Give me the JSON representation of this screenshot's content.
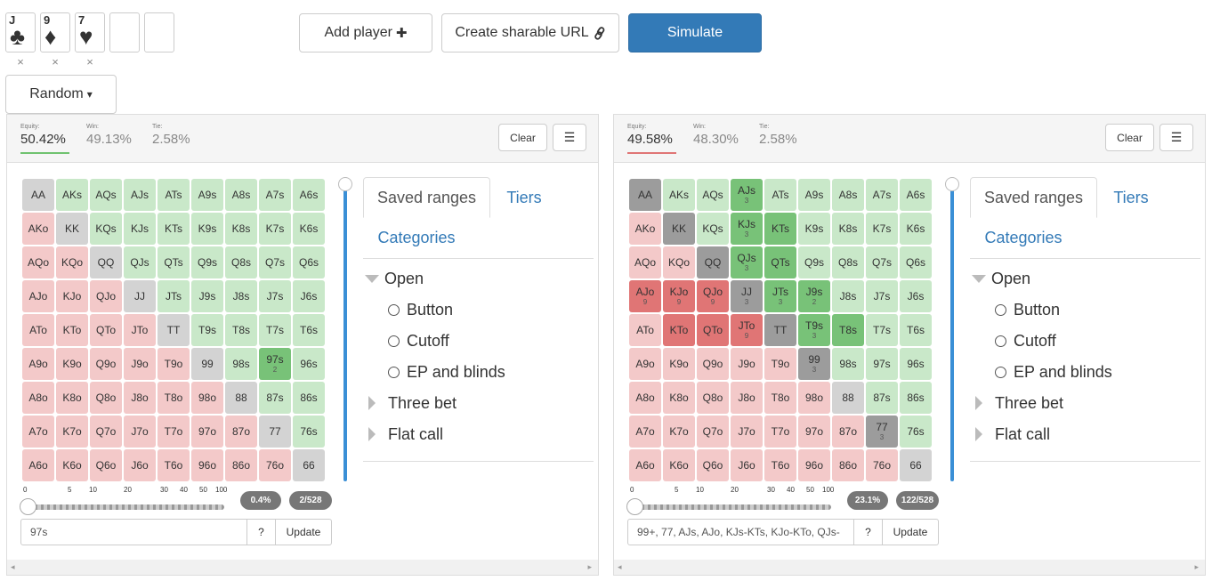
{
  "board": {
    "cards": [
      {
        "rank": "J",
        "suit": "♣",
        "color": "#111111"
      },
      {
        "rank": "9",
        "suit": "♦",
        "color": "#e02020"
      },
      {
        "rank": "7",
        "suit": "♥",
        "color": "#e02020"
      }
    ],
    "remove_glyph": "×"
  },
  "toolbar": {
    "add_player": "Add player",
    "add_icon": "✚",
    "share_url": "Create sharable URL",
    "share_icon": "🔗",
    "simulate": "Simulate",
    "random": "Random",
    "caret": "▾"
  },
  "labels": {
    "equity": "Equity:",
    "win": "Win:",
    "tie": "Tie:",
    "clear": "Clear",
    "menu": "☰",
    "saved_ranges": "Saved ranges",
    "tiers": "Tiers",
    "categories": "Categories",
    "open": "Open",
    "button": "Button",
    "cutoff": "Cutoff",
    "ep_blinds": "EP and blinds",
    "three_bet": "Three bet",
    "flat_call": "Flat call",
    "help": "?",
    "update": "Update",
    "scroll_left": "◂",
    "scroll_right": "▸"
  },
  "slider_ticks": [
    "0",
    "5",
    "10",
    "20",
    "30",
    "40",
    "50",
    "100"
  ],
  "players": [
    {
      "equity": "50.42%",
      "win": "49.13%",
      "tie": "2.58%",
      "equity_color": "#6fc26f",
      "percent": "0.4%",
      "combos": "2/528",
      "range_text": "97s",
      "grid": [
        [
          "AA:n",
          "AKs:g",
          "AQs:g",
          "AJs:g",
          "ATs:g",
          "A9s:g",
          "A8s:g",
          "A7s:g",
          "A6s:g"
        ],
        [
          "AKo:r",
          "KK:n",
          "KQs:g",
          "KJs:g",
          "KTs:g",
          "K9s:g",
          "K8s:g",
          "K7s:g",
          "K6s:g"
        ],
        [
          "AQo:r",
          "KQo:r",
          "QQ:n",
          "QJs:g",
          "QTs:g",
          "Q9s:g",
          "Q8s:g",
          "Q7s:g",
          "Q6s:g"
        ],
        [
          "AJo:r",
          "KJo:r",
          "QJo:r",
          "JJ:n",
          "JTs:g",
          "J9s:g",
          "J8s:g",
          "J7s:g",
          "J6s:g"
        ],
        [
          "ATo:r",
          "KTo:r",
          "QTo:r",
          "JTo:r",
          "TT:n",
          "T9s:g",
          "T8s:g",
          "T7s:g",
          "T6s:g"
        ],
        [
          "A9o:r",
          "K9o:r",
          "Q9o:r",
          "J9o:r",
          "T9o:r",
          "99:n",
          "98s:g",
          "97s:G:2",
          "96s:g"
        ],
        [
          "A8o:r",
          "K8o:r",
          "Q8o:r",
          "J8o:r",
          "T8o:r",
          "98o:r",
          "88:n",
          "87s:g",
          "86s:g"
        ],
        [
          "A7o:r",
          "K7o:r",
          "Q7o:r",
          "J7o:r",
          "T7o:r",
          "97o:r",
          "87o:r",
          "77:n",
          "76s:g"
        ],
        [
          "A6o:r",
          "K6o:r",
          "Q6o:r",
          "J6o:r",
          "T6o:r",
          "96o:r",
          "86o:r",
          "76o:r",
          "66:n"
        ]
      ]
    },
    {
      "equity": "49.58%",
      "win": "48.30%",
      "tie": "2.58%",
      "equity_color": "#e07575",
      "percent": "23.1%",
      "combos": "122/528",
      "range_text": "99+, 77, AJs, AJo, KJs-KTs, KJo-KTo, QJs-",
      "grid": [
        [
          "AA:N",
          "AKs:g",
          "AQs:g",
          "AJs:G:3",
          "ATs:g",
          "A9s:g",
          "A8s:g",
          "A7s:g",
          "A6s:g"
        ],
        [
          "AKo:r",
          "KK:N",
          "KQs:g",
          "KJs:G:3",
          "KTs:G",
          "K9s:g",
          "K8s:g",
          "K7s:g",
          "K6s:g"
        ],
        [
          "AQo:r",
          "KQo:r",
          "QQ:N",
          "QJs:G:3",
          "QTs:G",
          "Q9s:g",
          "Q8s:g",
          "Q7s:g",
          "Q6s:g"
        ],
        [
          "AJo:R:9",
          "KJo:R:9",
          "QJo:R:9",
          "JJ:N:3",
          "JTs:G:3",
          "J9s:G:2",
          "J8s:g",
          "J7s:g",
          "J6s:g"
        ],
        [
          "ATo:r",
          "KTo:R",
          "QTo:R",
          "JTo:R:9",
          "TT:N",
          "T9s:G:3",
          "T8s:G",
          "T7s:g",
          "T6s:g"
        ],
        [
          "A9o:r",
          "K9o:r",
          "Q9o:r",
          "J9o:r",
          "T9o:r",
          "99:N:3",
          "98s:g",
          "97s:g",
          "96s:g"
        ],
        [
          "A8o:r",
          "K8o:r",
          "Q8o:r",
          "J8o:r",
          "T8o:r",
          "98o:r",
          "88:n",
          "87s:g",
          "86s:g"
        ],
        [
          "A7o:r",
          "K7o:r",
          "Q7o:r",
          "J7o:r",
          "T7o:r",
          "97o:r",
          "87o:r",
          "77:N:3",
          "76s:g"
        ],
        [
          "A6o:r",
          "K6o:r",
          "Q6o:r",
          "J6o:r",
          "T6o:r",
          "96o:r",
          "86o:r",
          "76o:r",
          "66:n"
        ]
      ]
    }
  ]
}
